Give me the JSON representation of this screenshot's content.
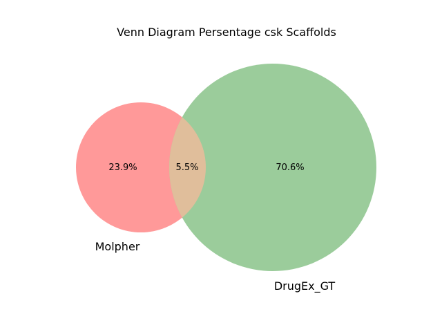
{
  "title": "Venn Diagram Persentage csk Scaffolds",
  "colors": {
    "set_a": "#ff9999",
    "set_b": "#9bcc9b",
    "overlap": "#e0be9b"
  },
  "sets": {
    "a": {
      "name": "Molpher"
    },
    "b": {
      "name": "DrugEx_GT"
    }
  },
  "regions": {
    "a_only": "23.9%",
    "overlap": "5.5%",
    "b_only": "70.6%"
  }
}
